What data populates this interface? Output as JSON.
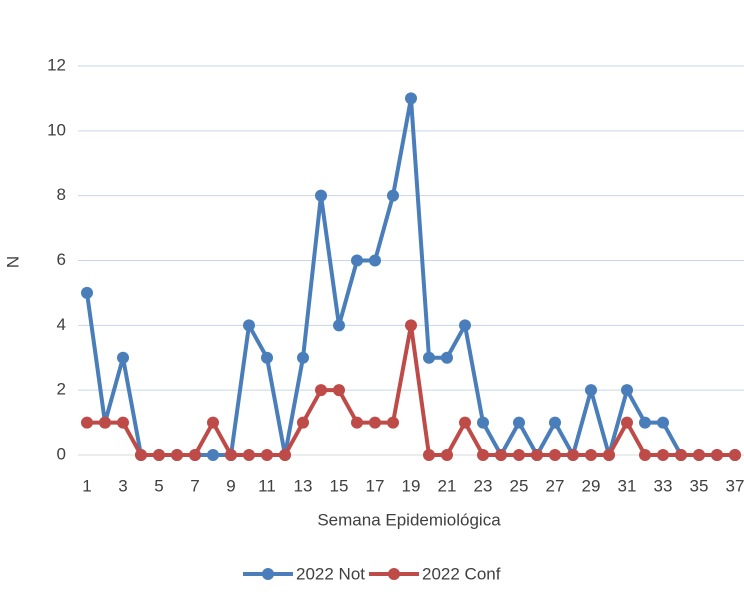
{
  "chart_data": {
    "type": "line",
    "y_label": "N",
    "x_label": "Semana Epidemiológica",
    "categories": [
      1,
      null,
      3,
      null,
      5,
      null,
      7,
      null,
      9,
      null,
      11,
      null,
      13,
      null,
      15,
      null,
      17,
      null,
      19,
      null,
      21,
      null,
      23,
      null,
      25,
      null,
      27,
      null,
      29,
      null,
      31,
      null,
      33,
      null,
      35,
      null,
      37
    ],
    "series": [
      {
        "name": "2022 Not",
        "color": "#4a7ebb",
        "values": [
          5,
          1,
          3,
          0,
          0,
          0,
          0,
          0,
          0,
          4,
          3,
          0,
          3,
          8,
          4,
          6,
          6,
          8,
          11,
          3,
          3,
          4,
          1,
          0,
          1,
          0,
          1,
          0,
          2,
          0,
          2,
          1,
          1,
          0,
          0,
          0,
          0
        ]
      },
      {
        "name": "2022 Conf",
        "color": "#be4b48",
        "values": [
          1,
          1,
          1,
          0,
          0,
          0,
          0,
          1,
          0,
          0,
          0,
          0,
          1,
          2,
          2,
          1,
          1,
          1,
          4,
          0,
          0,
          1,
          0,
          0,
          0,
          0,
          0,
          0,
          0,
          0,
          1,
          0,
          0,
          0,
          0,
          0,
          0
        ]
      }
    ],
    "ylim": [
      0,
      12
    ],
    "yticks": [
      0,
      2,
      4,
      6,
      8,
      10,
      12
    ],
    "grid": true,
    "legend": "bottom"
  }
}
